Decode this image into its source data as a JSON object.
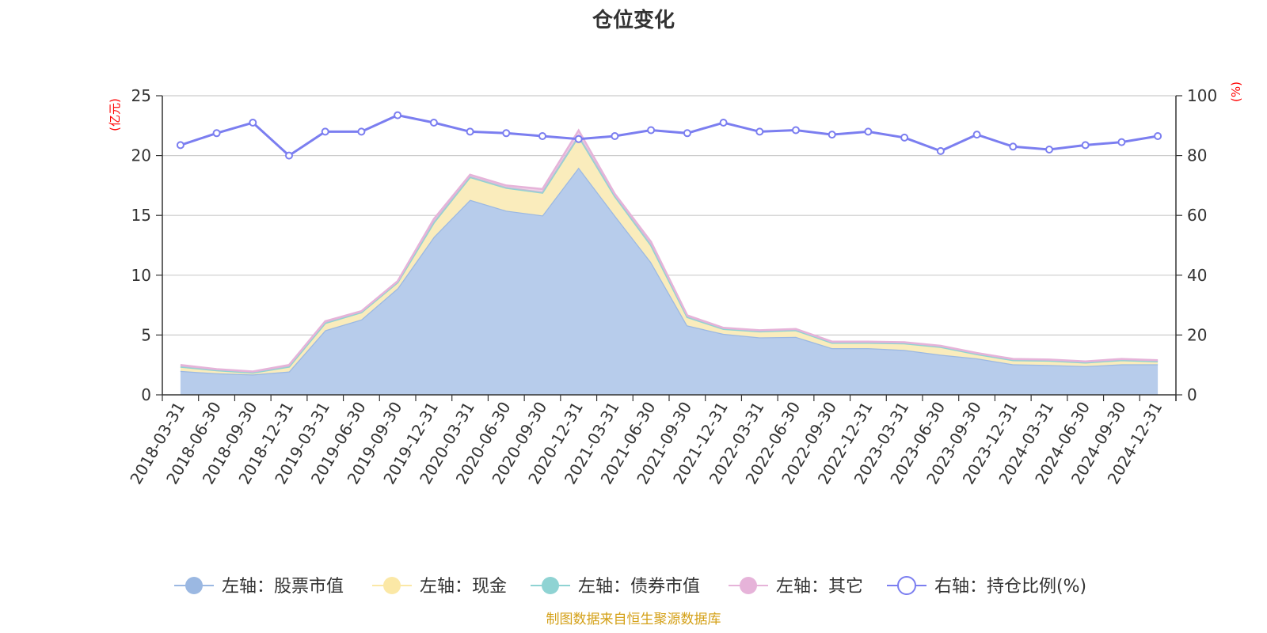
{
  "title": "仓位变化",
  "source": "制图数据来自恒生聚源数据库",
  "colors": {
    "stock": "#9bb8e2",
    "stock_fill": "#b7cceb",
    "cash": "#fbe8a6",
    "cash_fill": "#faecbc",
    "bond": "#8fd3d3",
    "other": "#e6b3d9",
    "ratio": "#7b7ef0",
    "grid": "#cccccc",
    "axis": "#333333",
    "unit": "#ff0000",
    "source": "#d4a017"
  },
  "chart_data": {
    "type": "area",
    "title": "仓位变化",
    "categories": [
      "2018-03-31",
      "2018-06-30",
      "2018-09-30",
      "2018-12-31",
      "2019-03-31",
      "2019-06-30",
      "2019-09-30",
      "2019-12-31",
      "2020-03-31",
      "2020-06-30",
      "2020-09-30",
      "2020-12-31",
      "2021-03-31",
      "2021-06-30",
      "2021-09-30",
      "2021-12-31",
      "2022-03-31",
      "2022-06-30",
      "2022-09-30",
      "2022-12-31",
      "2023-03-31",
      "2023-06-30",
      "2023-09-30",
      "2023-12-31",
      "2024-03-31",
      "2024-06-30",
      "2024-09-30",
      "2024-12-31"
    ],
    "left_axis": {
      "unit": "(亿元)",
      "ylim": [
        0,
        25
      ],
      "ticks": [
        "0",
        "5",
        "10",
        "15",
        "20",
        "25"
      ]
    },
    "right_axis": {
      "unit": "(%)",
      "ylim": [
        0,
        100
      ],
      "ticks": [
        "0",
        "20",
        "40",
        "60",
        "80",
        "100"
      ]
    },
    "grid": true,
    "legend_position": "bottom-center",
    "series": [
      {
        "name": "左轴：股票市值",
        "axis": "left",
        "stack": true,
        "values": [
          2.0,
          1.8,
          1.7,
          1.95,
          5.4,
          6.3,
          8.9,
          13.2,
          16.3,
          15.4,
          15.0,
          19.0,
          15.0,
          11.1,
          5.8,
          5.1,
          4.8,
          4.85,
          3.9,
          3.9,
          3.75,
          3.35,
          3.05,
          2.55,
          2.5,
          2.4,
          2.55,
          2.55
        ]
      },
      {
        "name": "左轴：现金",
        "axis": "left",
        "stack": true,
        "values": [
          0.35,
          0.25,
          0.15,
          0.4,
          0.6,
          0.6,
          0.5,
          1.2,
          1.9,
          1.9,
          1.9,
          2.6,
          1.6,
          1.4,
          0.7,
          0.4,
          0.5,
          0.55,
          0.45,
          0.45,
          0.55,
          0.65,
          0.35,
          0.35,
          0.35,
          0.3,
          0.35,
          0.25
        ]
      },
      {
        "name": "左轴：债券市值",
        "axis": "left",
        "stack": true,
        "values": [
          0,
          0,
          0,
          0,
          0,
          0,
          0,
          0,
          0,
          0,
          0,
          0,
          0,
          0,
          0,
          0,
          0,
          0,
          0,
          0,
          0,
          0,
          0,
          0,
          0,
          0,
          0,
          0
        ]
      },
      {
        "name": "左轴：其它",
        "axis": "left",
        "stack": true,
        "values": [
          0.15,
          0.1,
          0.1,
          0.15,
          0.15,
          0.1,
          0.1,
          0.3,
          0.2,
          0.2,
          0.3,
          0.5,
          0.2,
          0.3,
          0.15,
          0.1,
          0.1,
          0.1,
          0.1,
          0.1,
          0.1,
          0.1,
          0.1,
          0.1,
          0.1,
          0.1,
          0.1,
          0.1
        ]
      },
      {
        "name": "右轴：持仓比例(%)",
        "axis": "right",
        "type": "line",
        "values": [
          83.5,
          87.5,
          91.0,
          80.0,
          88.0,
          88.0,
          93.5,
          91.0,
          88.0,
          87.5,
          86.5,
          85.5,
          86.5,
          88.5,
          87.5,
          91.0,
          88.0,
          88.5,
          87.0,
          88.0,
          86.0,
          81.5,
          87.0,
          83.0,
          82.0,
          83.5,
          84.5,
          86.5
        ]
      }
    ]
  },
  "legend": [
    {
      "label": "左轴：股票市值",
      "color_key": "stock",
      "marker": "filled"
    },
    {
      "label": "左轴：现金",
      "color_key": "cash",
      "marker": "filled"
    },
    {
      "label": "左轴：债券市值",
      "color_key": "bond",
      "marker": "filled"
    },
    {
      "label": "左轴：其它",
      "color_key": "other",
      "marker": "filled"
    },
    {
      "label": "右轴：持仓比例(%)",
      "color_key": "ratio",
      "marker": "hollow"
    }
  ]
}
